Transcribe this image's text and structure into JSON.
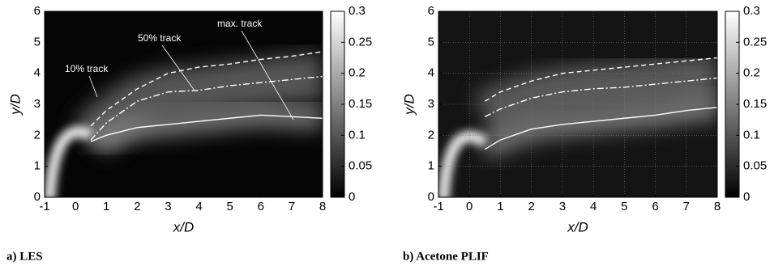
{
  "chart_data": [
    {
      "type": "heatmap",
      "caption": "a) LES",
      "xlabel": "x/D",
      "ylabel": "y/D",
      "xlim": [
        -1,
        8
      ],
      "xticks": [
        -1,
        0,
        1,
        2,
        3,
        4,
        5,
        6,
        7,
        8
      ],
      "ylim": [
        0,
        6
      ],
      "yticks": [
        0,
        1,
        2,
        3,
        4,
        5,
        6
      ],
      "clim": [
        0,
        0.3
      ],
      "cticks": [
        0,
        0.05,
        0.1,
        0.15,
        0.2,
        0.25,
        0.3
      ],
      "grid": false,
      "annotations": [
        "10% track",
        "50% track",
        "max. track"
      ],
      "x": [
        0.5,
        1,
        2,
        3,
        4,
        5,
        6,
        7,
        8
      ],
      "series": [
        {
          "color": "#ffffff",
          "linestyle": "dashed",
          "values": [
            2.3,
            2.8,
            3.5,
            4.0,
            4.2,
            4.3,
            4.45,
            4.55,
            4.7
          ]
        },
        {
          "color": "#ffffff",
          "linestyle": "dashdot",
          "values": [
            1.85,
            2.4,
            3.1,
            3.4,
            3.45,
            3.6,
            3.7,
            3.8,
            3.9
          ]
        },
        {
          "color": "#ffffff",
          "linestyle": "solid",
          "values": [
            1.8,
            2.0,
            2.25,
            2.35,
            2.45,
            2.55,
            2.65,
            2.6,
            2.55
          ]
        }
      ]
    },
    {
      "type": "heatmap",
      "caption": "b) Acetone PLIF",
      "xlabel": "x/D",
      "ylabel": "y/D",
      "xlim": [
        -1,
        8
      ],
      "xticks": [
        -1,
        0,
        1,
        2,
        3,
        4,
        5,
        6,
        7,
        8
      ],
      "ylim": [
        0,
        6
      ],
      "yticks": [
        0,
        1,
        2,
        3,
        4,
        5,
        6
      ],
      "clim": [
        0,
        0.3
      ],
      "cticks": [
        0,
        0.05,
        0.1,
        0.15,
        0.2,
        0.25,
        0.3
      ],
      "grid": true,
      "x": [
        0.5,
        1,
        2,
        3,
        4,
        5,
        6,
        7,
        8
      ],
      "series": [
        {
          "color": "#ffffff",
          "linestyle": "dashed",
          "values": [
            3.1,
            3.4,
            3.75,
            4.0,
            4.1,
            4.2,
            4.3,
            4.4,
            4.5
          ]
        },
        {
          "color": "#ffffff",
          "linestyle": "dashdot",
          "values": [
            2.6,
            2.85,
            3.2,
            3.4,
            3.5,
            3.55,
            3.65,
            3.75,
            3.85
          ]
        },
        {
          "color": "#ffffff",
          "linestyle": "solid",
          "values": [
            1.55,
            1.85,
            2.2,
            2.35,
            2.45,
            2.55,
            2.65,
            2.8,
            2.9
          ]
        }
      ]
    }
  ]
}
